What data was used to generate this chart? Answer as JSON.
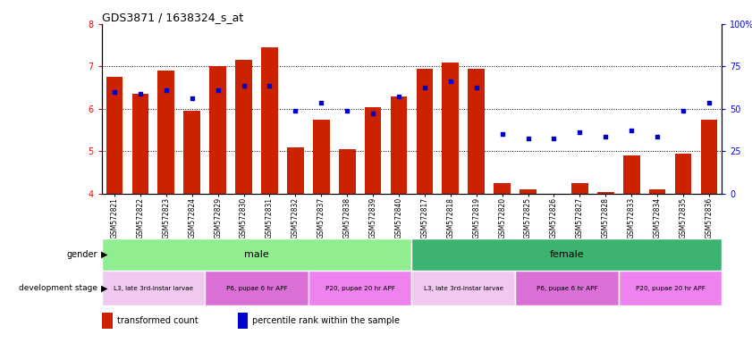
{
  "title": "GDS3871 / 1638324_s_at",
  "samples": [
    "GSM572821",
    "GSM572822",
    "GSM572823",
    "GSM572824",
    "GSM572829",
    "GSM572830",
    "GSM572831",
    "GSM572832",
    "GSM572837",
    "GSM572838",
    "GSM572839",
    "GSM572840",
    "GSM572817",
    "GSM572818",
    "GSM572819",
    "GSM572820",
    "GSM572825",
    "GSM572826",
    "GSM572827",
    "GSM572828",
    "GSM572833",
    "GSM572834",
    "GSM572835",
    "GSM572836"
  ],
  "bar_values": [
    6.75,
    6.35,
    6.9,
    5.95,
    7.0,
    7.15,
    7.45,
    5.1,
    5.75,
    5.05,
    6.05,
    6.3,
    6.95,
    7.1,
    6.95,
    4.25,
    4.1,
    4.0,
    4.25,
    4.05,
    4.9,
    4.1,
    4.95,
    5.75
  ],
  "percentile_values": [
    6.4,
    6.35,
    6.45,
    6.25,
    6.45,
    6.55,
    6.55,
    5.95,
    6.15,
    5.95,
    5.9,
    6.3,
    6.5,
    6.65,
    6.5,
    5.4,
    5.3,
    5.3,
    5.45,
    5.35,
    5.5,
    5.35,
    5.95,
    6.15
  ],
  "bar_color": "#CC2200",
  "dot_color": "#0000CC",
  "ylim_left": [
    4,
    8
  ],
  "ylim_right": [
    0,
    100
  ],
  "yticks_left": [
    4,
    5,
    6,
    7,
    8
  ],
  "yticks_right": [
    0,
    25,
    50,
    75,
    100
  ],
  "gender_male_label": "male",
  "gender_female_label": "female",
  "gender_male_color": "#90EE90",
  "gender_female_color": "#3CB371",
  "dev_l3_color": "#F0C8F0",
  "dev_p6_color": "#DA70D6",
  "dev_p20_color": "#EE82EE",
  "dev_stage_labels": [
    "L3, late 3rd-instar larvae",
    "P6, pupae 6 hr APF",
    "P20, pupae 20 hr APF"
  ],
  "legend_bar_label": "transformed count",
  "legend_dot_label": "percentile rank within the sample",
  "background_color": "#ffffff",
  "male_count": 12,
  "male_l3_count": 4,
  "male_p6_count": 4,
  "male_p20_count": 4,
  "female_count": 12,
  "female_l3_count": 4,
  "female_p6_count": 4,
  "female_p20_count": 4
}
